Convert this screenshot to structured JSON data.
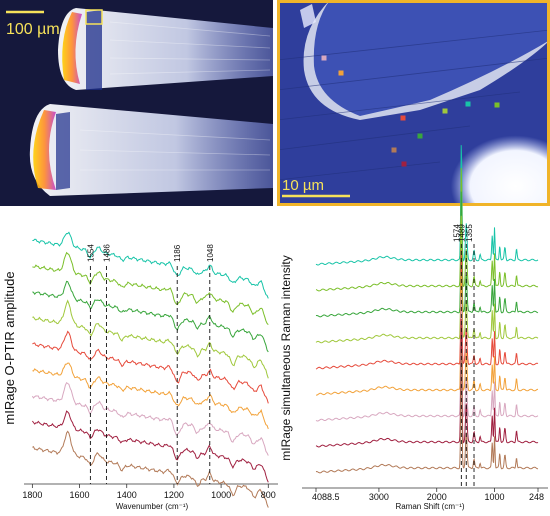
{
  "images": {
    "left_scale_label": "100 µm",
    "right_scale_label": "10 µm",
    "frame_color": "#f0b429"
  },
  "point_colors": [
    "#18c4a8",
    "#7bbf2a",
    "#39a63c",
    "#a0c83c",
    "#e64b3c",
    "#f2a23a",
    "#d8a8c0",
    "#a02040",
    "#b27a58"
  ],
  "chart_data": [
    {
      "type": "line",
      "ylabel": "mIRage O-PTIR amplitude",
      "xlabel": "Wavenumber (cm⁻¹)",
      "xlim": [
        1810,
        780
      ],
      "xticks": [
        "1800",
        "1600",
        "1400",
        "1200",
        "1000",
        "800"
      ],
      "annotations": [
        "1554",
        "1486",
        "1186",
        "1048"
      ],
      "annotation_positions": [
        1554,
        1486,
        1186,
        1048
      ],
      "series_count": 9
    },
    {
      "type": "line",
      "ylabel": "mIRage simultaneous Raman intensity",
      "xlabel": "Raman Shift (cm⁻¹)",
      "xlim": [
        4088.5,
        248
      ],
      "xticks": [
        "4088.5",
        "3000",
        "2000",
        "1000",
        "248"
      ],
      "annotations": [
        "1574",
        "1489",
        "1355"
      ],
      "annotation_positions": [
        1574,
        1489,
        1355
      ],
      "series_count": 9
    }
  ]
}
